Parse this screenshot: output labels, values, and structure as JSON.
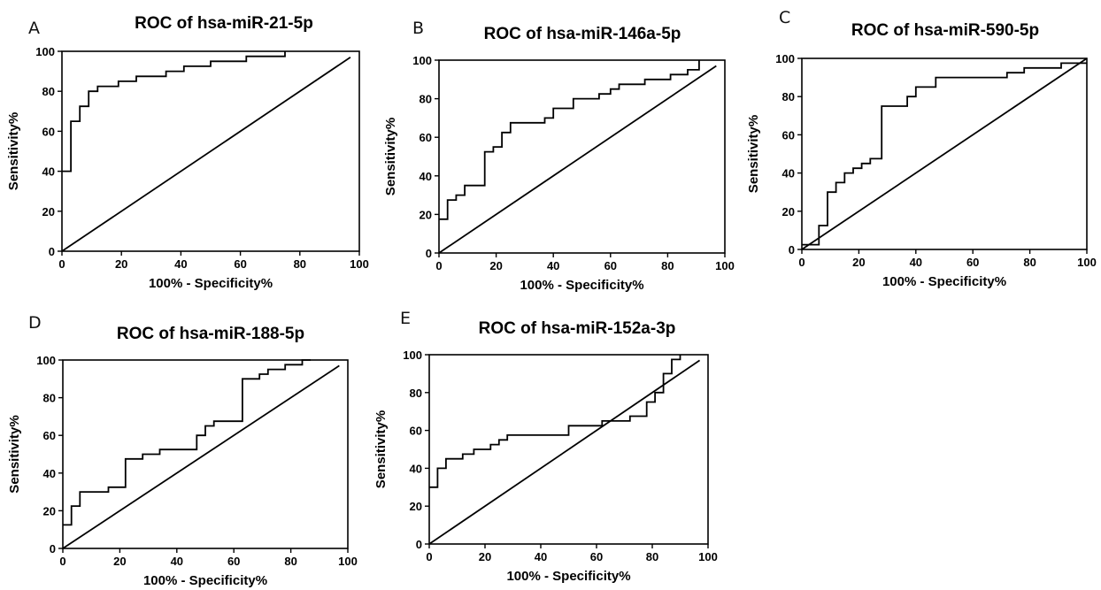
{
  "chart_data": [
    {
      "type": "line",
      "panel_letter": "A",
      "title": "ROC of hsa-miR-21-5p",
      "xlabel": "100%  - Specificity%",
      "ylabel": "Sensitivity%",
      "xlim": [
        0,
        100
      ],
      "ylim": [
        0,
        100
      ],
      "xticks": [
        0,
        20,
        40,
        60,
        80,
        100
      ],
      "yticks": [
        0,
        20,
        40,
        60,
        80,
        100
      ],
      "grid": false,
      "series": [
        {
          "kind": "step",
          "x": [
            0,
            3,
            3,
            6,
            6,
            9,
            9,
            12,
            12,
            19,
            19,
            25,
            25,
            35,
            35,
            41,
            41,
            50,
            50,
            62,
            62,
            75,
            75
          ],
          "y": [
            40,
            40,
            65,
            65,
            72.5,
            72.5,
            80,
            80,
            82.5,
            82.5,
            85,
            85,
            87.5,
            87.5,
            90,
            90,
            92.5,
            92.5,
            95,
            95,
            97.5,
            97.5,
            100
          ]
        },
        {
          "kind": "reference",
          "x": [
            0,
            97
          ],
          "y": [
            0,
            97
          ]
        }
      ]
    },
    {
      "type": "line",
      "panel_letter": "B",
      "title": "ROC of hsa-miR-146a-5p",
      "xlabel": "100%  - Specificity%",
      "ylabel": "Sensitivity%",
      "xlim": [
        0,
        100
      ],
      "ylim": [
        0,
        100
      ],
      "xticks": [
        0,
        20,
        40,
        60,
        80,
        100
      ],
      "yticks": [
        0,
        20,
        40,
        60,
        80,
        100
      ],
      "grid": false,
      "series": [
        {
          "kind": "step",
          "x": [
            0,
            3,
            3,
            6,
            6,
            9,
            9,
            12,
            12,
            16,
            16,
            19,
            19,
            22,
            22,
            25,
            25,
            37,
            37,
            40,
            40,
            47,
            47,
            56,
            56,
            60,
            60,
            63,
            63,
            72,
            72,
            81,
            81,
            87,
            87,
            91,
            91
          ],
          "y": [
            17.5,
            17.5,
            27.5,
            27.5,
            30,
            30,
            35,
            35,
            35,
            35,
            52.5,
            52.5,
            55,
            55,
            62.5,
            62.5,
            67.5,
            67.5,
            70,
            70,
            75,
            75,
            80,
            80,
            82.5,
            82.5,
            85,
            85,
            87.5,
            87.5,
            90,
            90,
            92.5,
            92.5,
            95,
            95,
            100
          ]
        },
        {
          "kind": "reference",
          "x": [
            0,
            97
          ],
          "y": [
            0,
            97
          ]
        }
      ]
    },
    {
      "type": "line",
      "panel_letter": "C",
      "title": "ROC of hsa-miR-590-5p",
      "xlabel": "100%  - Specificity%",
      "ylabel": "Sensitivity%",
      "xlim": [
        0,
        100
      ],
      "ylim": [
        0,
        100
      ],
      "xticks": [
        0,
        20,
        40,
        60,
        80,
        100
      ],
      "yticks": [
        0,
        20,
        40,
        60,
        80,
        100
      ],
      "grid": false,
      "series": [
        {
          "kind": "step",
          "x": [
            0,
            6,
            6,
            9,
            9,
            12,
            12,
            15,
            15,
            18,
            18,
            21,
            21,
            24,
            24,
            28,
            28,
            37,
            37,
            40,
            40,
            47,
            47,
            72,
            72,
            78,
            78,
            91,
            91,
            100
          ],
          "y": [
            2.5,
            2.5,
            12.5,
            12.5,
            30,
            30,
            35,
            35,
            40,
            40,
            42.5,
            42.5,
            45,
            45,
            47.5,
            47.5,
            75,
            75,
            80,
            80,
            85,
            85,
            90,
            90,
            92.5,
            92.5,
            95,
            95,
            97.5,
            97.5
          ]
        },
        {
          "kind": "reference",
          "x": [
            0,
            100
          ],
          "y": [
            0,
            100
          ]
        }
      ]
    },
    {
      "type": "line",
      "panel_letter": "D",
      "title": "ROC of hsa-miR-188-5p",
      "xlabel": "100%  - Specificity%",
      "ylabel": "Sensitivity%",
      "xlim": [
        0,
        100
      ],
      "ylim": [
        0,
        100
      ],
      "xticks": [
        0,
        20,
        40,
        60,
        80,
        100
      ],
      "yticks": [
        0,
        20,
        40,
        60,
        80,
        100
      ],
      "grid": false,
      "series": [
        {
          "kind": "step",
          "x": [
            0,
            3,
            3,
            6,
            6,
            16,
            16,
            22,
            22,
            28,
            28,
            34,
            34,
            47,
            47,
            50,
            50,
            53,
            53,
            63,
            63,
            69,
            69,
            72,
            72,
            78,
            78,
            84,
            84,
            87,
            87
          ],
          "y": [
            12.5,
            12.5,
            22.5,
            22.5,
            30,
            30,
            32.5,
            32.5,
            47.5,
            47.5,
            50,
            50,
            52.5,
            52.5,
            60,
            60,
            65,
            65,
            67.5,
            67.5,
            90,
            90,
            92.5,
            92.5,
            95,
            95,
            97.5,
            97.5,
            100,
            100,
            100
          ]
        },
        {
          "kind": "reference",
          "x": [
            0,
            97
          ],
          "y": [
            0,
            97
          ]
        }
      ]
    },
    {
      "type": "line",
      "panel_letter": "E",
      "title": "ROC of hsa-miR-152a-3p",
      "xlabel": "100%  - Specificity%",
      "ylabel": "Sensitivity%",
      "xlim": [
        0,
        100
      ],
      "ylim": [
        0,
        100
      ],
      "xticks": [
        0,
        20,
        40,
        60,
        80,
        100
      ],
      "yticks": [
        0,
        20,
        40,
        60,
        80,
        100
      ],
      "grid": false,
      "series": [
        {
          "kind": "step",
          "x": [
            0,
            3,
            3,
            6,
            6,
            12,
            12,
            16,
            16,
            22,
            22,
            25,
            25,
            28,
            28,
            50,
            50,
            62,
            62,
            72,
            72,
            78,
            78,
            81,
            81,
            84,
            84,
            87,
            87,
            90,
            90
          ],
          "y": [
            30,
            30,
            40,
            40,
            45,
            45,
            47.5,
            47.5,
            50,
            50,
            52.5,
            52.5,
            55,
            55,
            57.5,
            57.5,
            62.5,
            62.5,
            65,
            65,
            67.5,
            67.5,
            75,
            75,
            80,
            80,
            90,
            90,
            97.5,
            97.5,
            100
          ]
        },
        {
          "kind": "reference",
          "x": [
            0,
            97
          ],
          "y": [
            0,
            97
          ]
        }
      ]
    }
  ]
}
